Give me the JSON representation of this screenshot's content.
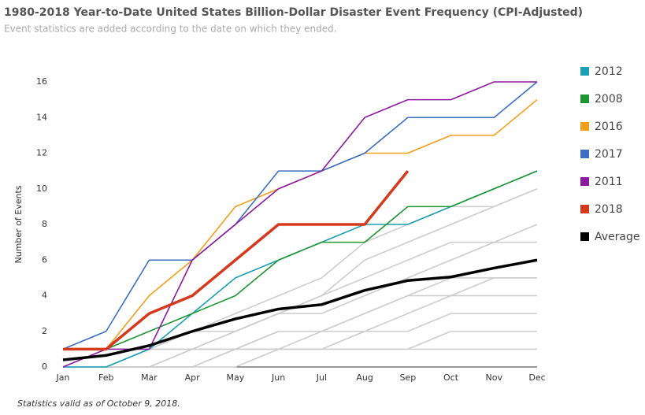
{
  "chart_data": {
    "type": "line",
    "title": "1980-2018 Year-to-Date United States Billion-Dollar Disaster Event Frequency (CPI-Adjusted)",
    "subtitle": "Event statistics are added according to the date on which they ended.",
    "y_label": "Number of Events",
    "footnote": "Statistics valid as of October 9, 2018.",
    "categories": [
      "Jan",
      "Feb",
      "Mar",
      "Apr",
      "May",
      "Jun",
      "Jul",
      "Aug",
      "Sep",
      "Oct",
      "Nov",
      "Dec"
    ],
    "ylim": [
      0,
      16
    ],
    "yticks": [
      0,
      2,
      4,
      6,
      8,
      10,
      12,
      14,
      16
    ],
    "legend": "right",
    "series": [
      {
        "name": "2012",
        "color": "#1a9fb5",
        "values": [
          0,
          0,
          1,
          3,
          5,
          6,
          7,
          8,
          8,
          9,
          10,
          11
        ]
      },
      {
        "name": "2008",
        "color": "#1e9634",
        "values": [
          1,
          1,
          2,
          3,
          4,
          6,
          7,
          7,
          9,
          9,
          10,
          11
        ]
      },
      {
        "name": "2016",
        "color": "#f29f1a",
        "values": [
          1,
          1,
          4,
          6,
          9,
          10,
          11,
          12,
          12,
          13,
          13,
          15
        ]
      },
      {
        "name": "2017",
        "color": "#3a6fc4",
        "values": [
          1,
          2,
          6,
          6,
          8,
          11,
          11,
          12,
          14,
          14,
          14,
          16
        ]
      },
      {
        "name": "2011",
        "color": "#8e1aa0",
        "values": [
          0,
          1,
          1,
          6,
          8,
          10,
          11,
          14,
          15,
          15,
          16,
          16
        ]
      },
      {
        "name": "2018",
        "color": "#d63a1e",
        "values": [
          1,
          1,
          3,
          4,
          6,
          8,
          8,
          8,
          11,
          null,
          null,
          null
        ]
      },
      {
        "name": "Average",
        "color": "#000000",
        "values": [
          0.4,
          0.65,
          1.2,
          2.0,
          2.7,
          3.25,
          3.5,
          4.3,
          4.85,
          5.05,
          5.55,
          6.0
        ]
      },
      {
        "color": "#cccccc",
        "values": [
          0,
          0,
          0,
          0,
          1,
          1,
          1,
          2,
          2,
          3,
          3,
          3
        ]
      },
      {
        "color": "#cccccc",
        "values": [
          0,
          0,
          0,
          1,
          1,
          2,
          2,
          3,
          4,
          5,
          5,
          5
        ]
      },
      {
        "color": "#cccccc",
        "values": [
          0,
          0,
          1,
          1,
          2,
          3,
          4,
          5,
          6,
          7,
          7,
          7
        ]
      },
      {
        "color": "#cccccc",
        "values": [
          1,
          1,
          1,
          2,
          2,
          3,
          3,
          4,
          5,
          6,
          7,
          8
        ]
      },
      {
        "color": "#cccccc",
        "values": [
          0,
          1,
          1,
          1,
          2,
          3,
          4,
          6,
          7,
          8,
          9,
          10
        ]
      },
      {
        "color": "#cccccc",
        "values": [
          0,
          0,
          1,
          2,
          3,
          4,
          5,
          7,
          8,
          9,
          9,
          10
        ]
      },
      {
        "color": "#cccccc",
        "values": [
          0,
          0,
          0,
          0,
          0,
          1,
          1,
          1,
          1,
          2,
          2,
          2
        ]
      },
      {
        "color": "#cccccc",
        "values": [
          0,
          0,
          0,
          1,
          1,
          1,
          2,
          2,
          3,
          4,
          4,
          4
        ]
      },
      {
        "color": "#cccccc",
        "values": [
          1,
          1,
          1,
          1,
          1,
          1,
          1,
          1,
          1,
          1,
          1,
          1
        ]
      },
      {
        "color": "#cccccc",
        "values": [
          0,
          0,
          0,
          0,
          1,
          2,
          2,
          3,
          4,
          4,
          5,
          5
        ]
      }
    ]
  }
}
